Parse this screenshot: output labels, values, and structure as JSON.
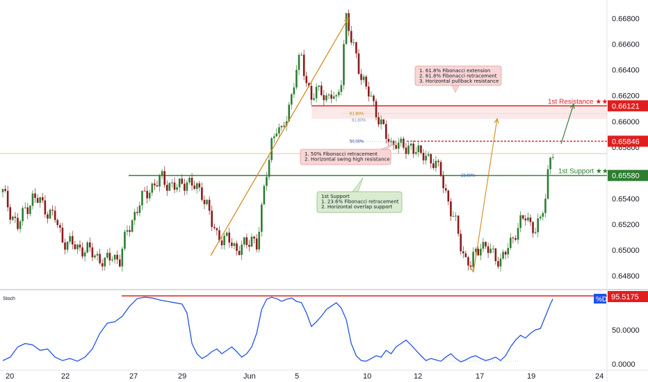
{
  "chart_data": {
    "type": "candlestick",
    "price_axis": {
      "ticks": [
        "0.66800",
        "0.66600",
        "0.66400",
        "0.66200",
        "0.66000",
        "0.65800",
        "0.65600",
        "0.65400",
        "0.65200",
        "0.65000",
        "0.64800"
      ],
      "ylim": [
        0.6472,
        0.669
      ]
    },
    "x_axis": {
      "ticks": [
        "20",
        "22",
        "27",
        "29",
        "Jun",
        "5",
        "10",
        "12",
        "17",
        "19",
        "24"
      ]
    },
    "price_path": [
      [
        0,
        0.6545
      ],
      [
        3,
        0.653
      ],
      [
        6,
        0.6518
      ],
      [
        9,
        0.6532
      ],
      [
        12,
        0.654
      ],
      [
        15,
        0.6538
      ],
      [
        18,
        0.653
      ],
      [
        21,
        0.6525
      ],
      [
        24,
        0.6508
      ],
      [
        27,
        0.6505
      ],
      [
        30,
        0.6502
      ],
      [
        34,
        0.65
      ],
      [
        38,
        0.6495
      ],
      [
        41,
        0.649
      ],
      [
        44,
        0.6496
      ],
      [
        47,
        0.6492
      ],
      [
        50,
        0.6515
      ],
      [
        53,
        0.6528
      ],
      [
        56,
        0.654
      ],
      [
        59,
        0.6548
      ],
      [
        62,
        0.6552
      ],
      [
        64,
        0.6556
      ],
      [
        66,
        0.6552
      ],
      [
        68,
        0.655
      ],
      [
        70,
        0.6548
      ],
      [
        72,
        0.6552
      ],
      [
        74,
        0.6554
      ],
      [
        76,
        0.655
      ],
      [
        78,
        0.6548
      ],
      [
        80,
        0.6545
      ],
      [
        82,
        0.6535
      ],
      [
        84,
        0.652
      ],
      [
        86,
        0.6512
      ],
      [
        88,
        0.651
      ],
      [
        90,
        0.6508
      ],
      [
        92,
        0.6505
      ],
      [
        94,
        0.65
      ],
      [
        96,
        0.6505
      ],
      [
        98,
        0.6502
      ],
      [
        100,
        0.651
      ],
      [
        102,
        0.6505
      ],
      [
        104,
        0.653
      ],
      [
        106,
        0.656
      ],
      [
        108,
        0.6585
      ],
      [
        110,
        0.6595
      ],
      [
        112,
        0.659
      ],
      [
        114,
        0.6605
      ],
      [
        116,
        0.662
      ],
      [
        118,
        0.664
      ],
      [
        120,
        0.665
      ],
      [
        122,
        0.6632
      ],
      [
        124,
        0.6618
      ],
      [
        126,
        0.6622
      ],
      [
        128,
        0.6625
      ],
      [
        130,
        0.6618
      ],
      [
        132,
        0.662
      ],
      [
        134,
        0.6615
      ],
      [
        136,
        0.6635
      ],
      [
        137,
        0.666
      ],
      [
        138,
        0.668
      ],
      [
        140,
        0.6662
      ],
      [
        142,
        0.6652
      ],
      [
        144,
        0.6635
      ],
      [
        146,
        0.6625
      ],
      [
        148,
        0.6618
      ],
      [
        150,
        0.6608
      ],
      [
        152,
        0.6598
      ],
      [
        154,
        0.6588
      ],
      [
        156,
        0.6582
      ],
      [
        158,
        0.6585
      ],
      [
        160,
        0.658
      ],
      [
        162,
        0.6578
      ],
      [
        164,
        0.6582
      ],
      [
        166,
        0.6578
      ],
      [
        168,
        0.6572
      ],
      [
        170,
        0.6575
      ],
      [
        172,
        0.657
      ],
      [
        174,
        0.6565
      ],
      [
        176,
        0.656
      ],
      [
        178,
        0.6545
      ],
      [
        180,
        0.653
      ],
      [
        182,
        0.652
      ],
      [
        184,
        0.6505
      ],
      [
        186,
        0.6492
      ],
      [
        188,
        0.6488
      ],
      [
        190,
        0.6498
      ],
      [
        192,
        0.6505
      ],
      [
        194,
        0.6502
      ],
      [
        196,
        0.6498
      ],
      [
        198,
        0.6495
      ],
      [
        200,
        0.6492
      ],
      [
        202,
        0.6498
      ],
      [
        204,
        0.6505
      ],
      [
        206,
        0.6515
      ],
      [
        208,
        0.6522
      ],
      [
        210,
        0.6525
      ],
      [
        212,
        0.652
      ],
      [
        214,
        0.6518
      ],
      [
        216,
        0.6522
      ],
      [
        218,
        0.654
      ],
      [
        219,
        0.656
      ],
      [
        220,
        0.6575
      ],
      [
        221,
        0.6578
      ]
    ],
    "levels": [
      {
        "name": "1st Resistance ★★",
        "value": "0.66121",
        "color": "#e01e1e"
      },
      {
        "name": "",
        "value": "0.65846",
        "color": "#e01e1e"
      },
      {
        "name": "1st Support ★★",
        "value": "0.65580",
        "color": "#2e7d32"
      }
    ],
    "fib_labels": [
      "61.80%",
      "61.80%",
      "50.00%",
      "23.60%"
    ],
    "callouts": [
      [
        "1. 61.8% Fibonacci extension",
        "2. 61.8% Fibonacci retracement",
        "3. Horizontal pullback resistance"
      ],
      [
        "1. 50% Fibonacci retracement",
        "2. Horizontal swing high resistance"
      ],
      [
        "1st Support",
        "1. 23.6% Fibonacci retracement",
        "2. Horizontal overlap support"
      ]
    ],
    "stoch": {
      "label": "Stoch",
      "series_name": "%D",
      "last_value": "95.5175",
      "ticks": [
        "50.0000",
        "0.0000"
      ],
      "ylim": [
        0,
        100
      ],
      "values": [
        [
          0,
          5
        ],
        [
          3,
          10
        ],
        [
          6,
          25
        ],
        [
          9,
          30
        ],
        [
          12,
          28
        ],
        [
          15,
          20
        ],
        [
          18,
          22
        ],
        [
          21,
          10
        ],
        [
          24,
          5
        ],
        [
          27,
          8
        ],
        [
          30,
          4
        ],
        [
          33,
          10
        ],
        [
          36,
          22
        ],
        [
          39,
          45
        ],
        [
          42,
          60
        ],
        [
          45,
          62
        ],
        [
          48,
          70
        ],
        [
          51,
          85
        ],
        [
          54,
          96
        ],
        [
          57,
          98
        ],
        [
          60,
          97
        ],
        [
          63,
          94
        ],
        [
          66,
          92
        ],
        [
          69,
          90
        ],
        [
          72,
          88
        ],
        [
          74,
          75
        ],
        [
          76,
          30
        ],
        [
          78,
          15
        ],
        [
          80,
          8
        ],
        [
          82,
          12
        ],
        [
          84,
          18
        ],
        [
          86,
          22
        ],
        [
          88,
          15
        ],
        [
          90,
          20
        ],
        [
          92,
          25
        ],
        [
          94,
          18
        ],
        [
          96,
          10
        ],
        [
          98,
          15
        ],
        [
          100,
          25
        ],
        [
          102,
          45
        ],
        [
          104,
          80
        ],
        [
          106,
          95
        ],
        [
          108,
          98
        ],
        [
          110,
          96
        ],
        [
          112,
          92
        ],
        [
          114,
          95
        ],
        [
          116,
          97
        ],
        [
          118,
          92
        ],
        [
          120,
          90
        ],
        [
          122,
          75
        ],
        [
          124,
          55
        ],
        [
          126,
          62
        ],
        [
          128,
          70
        ],
        [
          130,
          80
        ],
        [
          132,
          85
        ],
        [
          134,
          90
        ],
        [
          136,
          82
        ],
        [
          138,
          65
        ],
        [
          140,
          30
        ],
        [
          142,
          12
        ],
        [
          144,
          5
        ],
        [
          146,
          4
        ],
        [
          148,
          8
        ],
        [
          150,
          12
        ],
        [
          152,
          10
        ],
        [
          154,
          20
        ],
        [
          156,
          15
        ],
        [
          158,
          25
        ],
        [
          160,
          30
        ],
        [
          162,
          35
        ],
        [
          164,
          28
        ],
        [
          166,
          20
        ],
        [
          168,
          12
        ],
        [
          170,
          5
        ],
        [
          172,
          8
        ],
        [
          174,
          6
        ],
        [
          176,
          4
        ],
        [
          178,
          10
        ],
        [
          180,
          15
        ],
        [
          182,
          8
        ],
        [
          184,
          3
        ],
        [
          186,
          6
        ],
        [
          188,
          10
        ],
        [
          190,
          12
        ],
        [
          192,
          8
        ],
        [
          194,
          5
        ],
        [
          196,
          7
        ],
        [
          198,
          10
        ],
        [
          200,
          5
        ],
        [
          202,
          12
        ],
        [
          204,
          25
        ],
        [
          206,
          35
        ],
        [
          208,
          42
        ],
        [
          210,
          38
        ],
        [
          212,
          45
        ],
        [
          214,
          50
        ],
        [
          216,
          52
        ],
        [
          218,
          70
        ],
        [
          220,
          88
        ],
        [
          221,
          95.5
        ]
      ]
    }
  }
}
